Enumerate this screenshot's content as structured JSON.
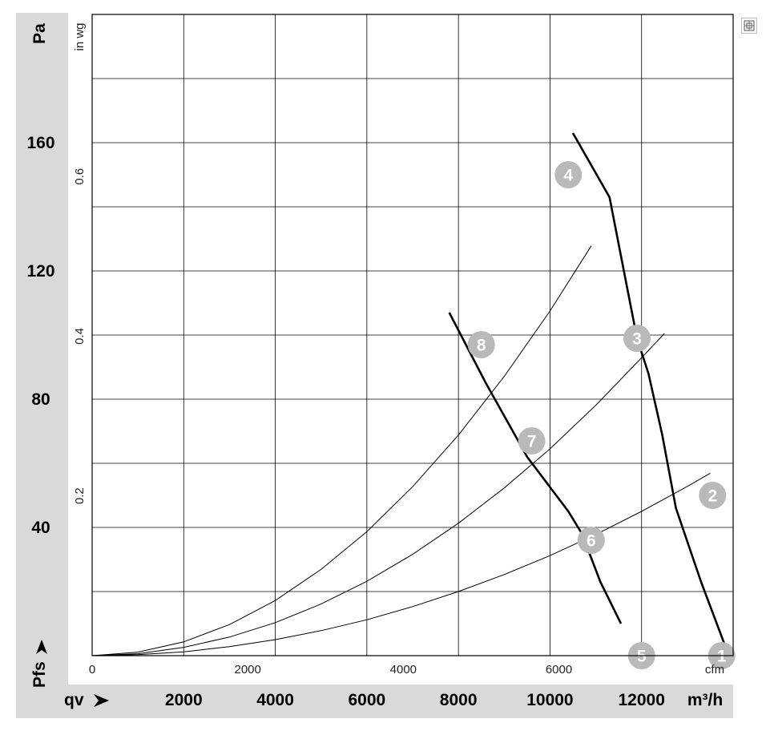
{
  "chart_data": {
    "type": "line",
    "x_primary": {
      "label": "qv",
      "unit": "m³/h",
      "ticks": [
        2000,
        4000,
        6000,
        8000,
        10000,
        12000
      ],
      "range": [
        0,
        14000
      ]
    },
    "x_secondary": {
      "unit": "cfm",
      "ticks": [
        0,
        2000,
        4000,
        6000
      ],
      "range": [
        0,
        8240
      ]
    },
    "y_primary": {
      "label": "Pfs",
      "unit": "Pa",
      "ticks": [
        40,
        80,
        120,
        160
      ],
      "range": [
        0,
        200
      ]
    },
    "y_secondary": {
      "unit": "in wg",
      "ticks": [
        0.2,
        0.4,
        0.6
      ],
      "range": [
        0,
        0.803
      ]
    },
    "grid": true,
    "fan_curves": [
      {
        "points": [
          [
            10500,
            163
          ],
          [
            11300,
            143
          ],
          [
            11900,
            99
          ],
          [
            12150,
            88
          ],
          [
            12450,
            69
          ],
          [
            12750,
            46
          ],
          [
            13300,
            23
          ],
          [
            13800,
            4
          ]
        ]
      },
      {
        "points": [
          [
            7800,
            107
          ],
          [
            8600,
            85
          ],
          [
            9500,
            62
          ],
          [
            10400,
            45
          ],
          [
            10700,
            38
          ],
          [
            11100,
            23
          ],
          [
            11550,
            10
          ]
        ]
      }
    ],
    "system_curves": [
      {
        "points": [
          [
            0,
            0
          ],
          [
            1000,
            0.6
          ],
          [
            2000,
            2.6
          ],
          [
            3000,
            5.8
          ],
          [
            4000,
            10.3
          ],
          [
            5000,
            16.1
          ],
          [
            6000,
            23.2
          ],
          [
            7000,
            31.6
          ],
          [
            8000,
            41.3
          ],
          [
            9000,
            52.3
          ],
          [
            10000,
            64.5
          ],
          [
            11000,
            78.1
          ],
          [
            12000,
            92.9
          ],
          [
            12500,
            100.5
          ]
        ]
      },
      {
        "points": [
          [
            0,
            0
          ],
          [
            1000,
            1.1
          ],
          [
            2000,
            4.3
          ],
          [
            3000,
            9.7
          ],
          [
            4000,
            17.2
          ],
          [
            5000,
            26.9
          ],
          [
            6000,
            38.7
          ],
          [
            7000,
            52.7
          ],
          [
            8000,
            68.8
          ],
          [
            9000,
            87.1
          ],
          [
            10000,
            107.5
          ],
          [
            10900,
            127.8
          ]
        ]
      },
      {
        "points": [
          [
            0,
            0
          ],
          [
            1000,
            0.3
          ],
          [
            2000,
            1.2
          ],
          [
            3000,
            2.8
          ],
          [
            4000,
            5.0
          ],
          [
            5000,
            7.8
          ],
          [
            6000,
            11.2
          ],
          [
            7000,
            15.3
          ],
          [
            8000,
            20.0
          ],
          [
            9000,
            25.3
          ],
          [
            10000,
            31.2
          ],
          [
            11000,
            37.8
          ],
          [
            12000,
            45.0
          ],
          [
            13000,
            52.8
          ],
          [
            13500,
            56.9
          ]
        ]
      }
    ],
    "operating_points": [
      {
        "id": "1",
        "x": 13750,
        "y": 0
      },
      {
        "id": "2",
        "x": 13550,
        "y": 50
      },
      {
        "id": "3",
        "x": 11900,
        "y": 99
      },
      {
        "id": "4",
        "x": 10400,
        "y": 150
      },
      {
        "id": "5",
        "x": 12000,
        "y": 0
      },
      {
        "id": "6",
        "x": 10900,
        "y": 36
      },
      {
        "id": "7",
        "x": 9600,
        "y": 67
      },
      {
        "id": "8",
        "x": 8500,
        "y": 97
      }
    ],
    "colors": {
      "badge": "#b9b9b9",
      "band": "#d9d9d9",
      "line": "#000000"
    }
  }
}
